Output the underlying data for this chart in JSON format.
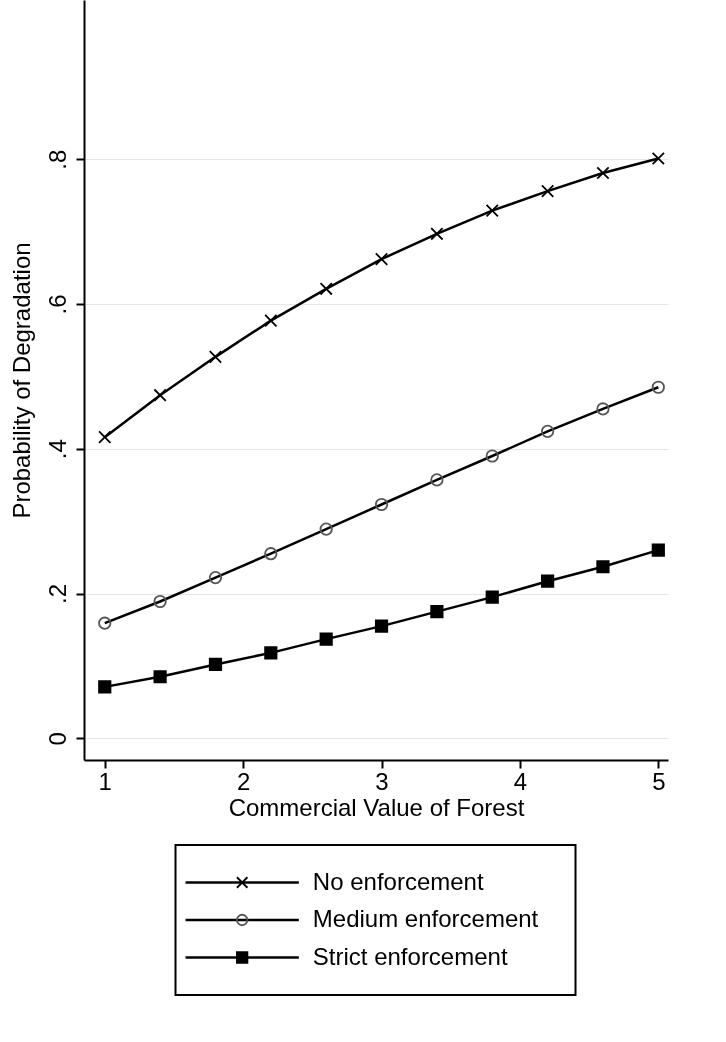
{
  "chart_data": {
    "type": "line",
    "xlabel": "Commercial Value of Forest",
    "ylabel": "Probability of Degradation",
    "x": [
      1,
      1.4,
      1.8,
      2.2,
      2.6,
      3,
      3.4,
      3.8,
      4.2,
      4.6,
      5
    ],
    "series": [
      {
        "name": "No enforcement",
        "color": "#000000",
        "marker": "cross",
        "values": [
          0.416,
          0.474,
          0.527,
          0.577,
          0.621,
          0.662,
          0.697,
          0.729,
          0.756,
          0.781,
          0.801
        ]
      },
      {
        "name": "Medium enforcement",
        "color": "#000000",
        "marker": "circle",
        "values": [
          0.159,
          0.189,
          0.222,
          0.255,
          0.289,
          0.323,
          0.357,
          0.39,
          0.424,
          0.455,
          0.485
        ]
      },
      {
        "name": "Strict enforcement",
        "color": "#000000",
        "marker": "square",
        "values": [
          0.071,
          0.085,
          0.102,
          0.118,
          0.137,
          0.155,
          0.175,
          0.195,
          0.217,
          0.237,
          0.26
        ]
      }
    ],
    "xlim": [
      0.85,
      5.07
    ],
    "ylim": [
      -0.03,
      1.02
    ],
    "xticks": [
      1,
      2,
      3,
      4,
      5
    ],
    "yticks": [
      {
        "value": 0,
        "label": "0"
      },
      {
        "value": 0.2,
        "label": ".2"
      },
      {
        "value": 0.4,
        "label": ".4"
      },
      {
        "value": 0.6,
        "label": ".6"
      },
      {
        "value": 0.8,
        "label": ".8"
      }
    ],
    "grid": "y",
    "legend": "bottom"
  }
}
